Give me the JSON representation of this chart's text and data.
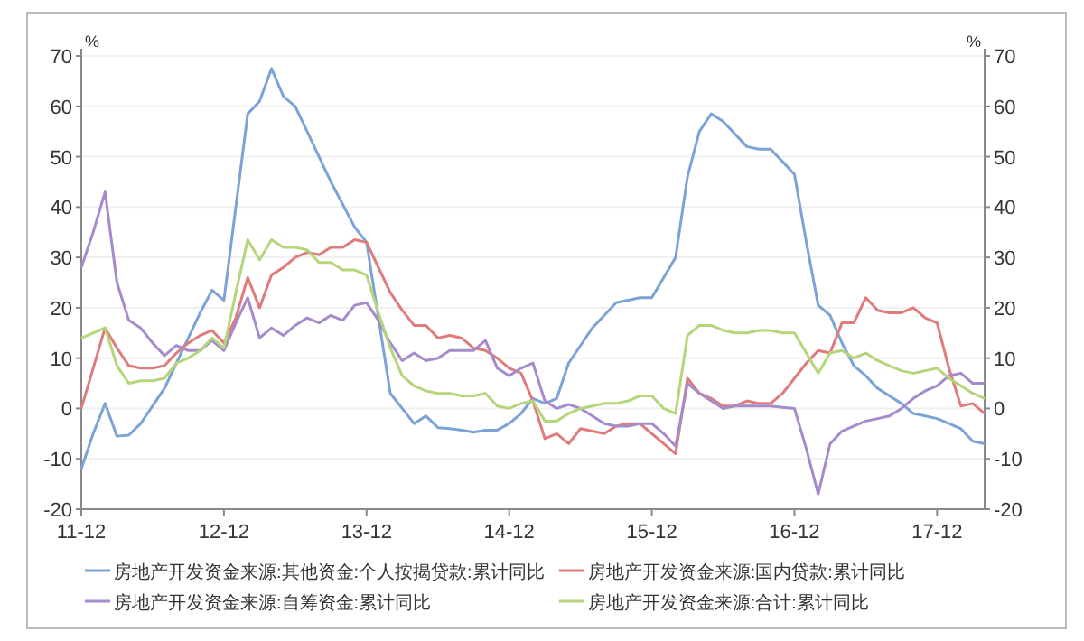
{
  "chart_data": {
    "type": "line",
    "ylabel": "%",
    "y2label": "%",
    "grid": "y",
    "legend": "bottom",
    "marker": "none",
    "x": [
      "2011-12",
      "2012-01",
      "2012-02",
      "2012-03",
      "2012-04",
      "2012-05",
      "2012-06",
      "2012-07",
      "2012-08",
      "2012-09",
      "2012-10",
      "2012-11",
      "2012-12",
      "2013-01",
      "2013-02",
      "2013-03",
      "2013-04",
      "2013-05",
      "2013-06",
      "2013-07",
      "2013-08",
      "2013-09",
      "2013-10",
      "2013-11",
      "2013-12",
      "2014-01",
      "2014-02",
      "2014-03",
      "2014-04",
      "2014-05",
      "2014-06",
      "2014-07",
      "2014-08",
      "2014-09",
      "2014-10",
      "2014-11",
      "2014-12",
      "2015-01",
      "2015-02",
      "2015-03",
      "2015-04",
      "2015-05",
      "2015-06",
      "2015-07",
      "2015-08",
      "2015-09",
      "2015-10",
      "2015-11",
      "2015-12",
      "2016-01",
      "2016-02",
      "2016-03",
      "2016-04",
      "2016-05",
      "2016-06",
      "2016-07",
      "2016-08",
      "2016-09",
      "2016-10",
      "2016-11",
      "2016-12",
      "2017-01",
      "2017-02",
      "2017-03",
      "2017-04",
      "2017-05",
      "2017-06",
      "2017-07",
      "2017-08",
      "2017-09",
      "2017-10",
      "2017-11",
      "2017-12",
      "2018-01",
      "2018-02",
      "2018-03",
      "2018-04"
    ],
    "xlim": [
      "2011-12",
      "2018-04"
    ],
    "xticks": [
      {
        "value": "2011-12",
        "label": "11-12"
      },
      {
        "value": "2012-12",
        "label": "12-12"
      },
      {
        "value": "2013-12",
        "label": "13-12"
      },
      {
        "value": "2014-12",
        "label": "14-12"
      },
      {
        "value": "2015-12",
        "label": "15-12"
      },
      {
        "value": "2016-12",
        "label": "16-12"
      },
      {
        "value": "2017-12",
        "label": "17-12"
      }
    ],
    "ylim": [
      -20,
      70
    ],
    "yticks": [
      -20,
      -10,
      0,
      10,
      20,
      30,
      40,
      50,
      60,
      70
    ],
    "y2lim": [
      -20,
      70
    ],
    "y2ticks": [
      -20,
      -10,
      0,
      10,
      20,
      30,
      40,
      50,
      60,
      70
    ],
    "series": [
      {
        "name": "房地产开发资金来源:其他资金:个人按揭贷款:累计同比",
        "color": "#7ba3d6",
        "values": [
          -12,
          -5,
          1,
          -5.5,
          -5.3,
          -3,
          0.5,
          4,
          9,
          14,
          19,
          23.5,
          21.5,
          40,
          58.5,
          61,
          67.5,
          62,
          60,
          55,
          50,
          45,
          40.5,
          36,
          33,
          18,
          3,
          0,
          -3,
          -1.5,
          -3.8,
          -4,
          -4.3,
          -4.7,
          -4.3,
          -4.3,
          -3,
          -1,
          2,
          1,
          2,
          9,
          12.5,
          16,
          18.5,
          21,
          21.5,
          22,
          22,
          26,
          30,
          46,
          55,
          58.5,
          57,
          54.5,
          52,
          51.5,
          51.5,
          49,
          46.5,
          33,
          20.5,
          18.5,
          13,
          8.5,
          6.5,
          4,
          2.5,
          1,
          -1,
          -1.5,
          -2,
          -3,
          -4,
          -6.5,
          -7
        ]
      },
      {
        "name": "房地产开发资金来源:国内贷款:累计同比",
        "color": "#e07b7b",
        "values": [
          0,
          8,
          16,
          12,
          8.5,
          8,
          8,
          8.5,
          11,
          13,
          14.5,
          15.5,
          13,
          18,
          26,
          20,
          26.5,
          28,
          30,
          31,
          30.5,
          32,
          32,
          33.5,
          33,
          28,
          23,
          19.5,
          16.5,
          16.5,
          14,
          14.5,
          14,
          12,
          11.5,
          10,
          8,
          7,
          1.5,
          -6,
          -5,
          -7,
          -4,
          -4.5,
          -5,
          -3.5,
          -3,
          -3,
          -5,
          -7,
          -9,
          6,
          3,
          2,
          0.5,
          0.5,
          1.5,
          1,
          1,
          3,
          6,
          9,
          11.5,
          11,
          17,
          17,
          22,
          19.5,
          19,
          19,
          20,
          18,
          17,
          8,
          0.5,
          1,
          -1
        ]
      },
      {
        "name": "房地产开发资金来源:自筹资金:累计同比",
        "color": "#a58bcc",
        "values": [
          28,
          35,
          43,
          25,
          17.5,
          16,
          13,
          10.5,
          12.5,
          11.5,
          11.5,
          13.5,
          11.5,
          17,
          22,
          14,
          16,
          14.5,
          16.5,
          18,
          17,
          18.5,
          17.5,
          20.5,
          21,
          17.5,
          13,
          9.5,
          11,
          9.5,
          10,
          11.5,
          11.5,
          11.5,
          13.5,
          8,
          6.5,
          8,
          9,
          1.5,
          0,
          0.8,
          0,
          -1.5,
          -3,
          -3.5,
          -3.5,
          -3,
          -3,
          -5,
          -7.5,
          5,
          3,
          1.5,
          0,
          0.5,
          0.5,
          0.5,
          0.5,
          0.2,
          0,
          -8,
          -17,
          -7,
          -4.5,
          -3.5,
          -2.5,
          -2,
          -1.5,
          0,
          2,
          3.5,
          4.5,
          6.5,
          7,
          5,
          5
        ]
      },
      {
        "name": "房地产开发资金来源:合计:累计同比",
        "color": "#b5d57b",
        "values": [
          14,
          15,
          16,
          8.5,
          5,
          5.5,
          5.5,
          6,
          9,
          10,
          11.5,
          14,
          12,
          23,
          33.5,
          29.5,
          33.5,
          32,
          32,
          31.5,
          29,
          29,
          27.5,
          27.5,
          26.5,
          19,
          12,
          6.5,
          4.5,
          3.5,
          3,
          3,
          2.5,
          2.5,
          3,
          0.5,
          0,
          1,
          1.5,
          -2.5,
          -2.5,
          -1,
          0,
          0.5,
          1,
          1,
          1.5,
          2.5,
          2.5,
          0,
          -1,
          14.5,
          16.5,
          16.5,
          15.5,
          15,
          15,
          15.5,
          15.5,
          15,
          15,
          11,
          7,
          11,
          11.5,
          10,
          11,
          9.5,
          8.5,
          7.5,
          7,
          7.5,
          8,
          6,
          4.5,
          3,
          2
        ]
      }
    ]
  }
}
